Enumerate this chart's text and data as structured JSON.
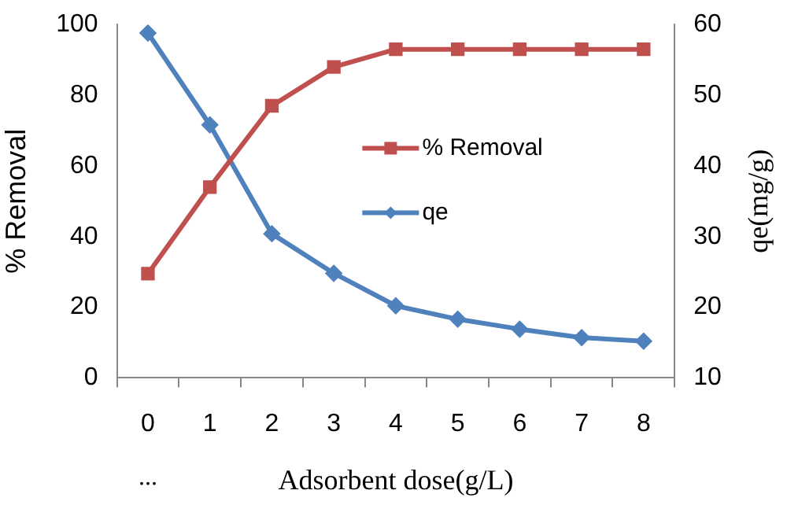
{
  "chart_data": {
    "type": "line",
    "xlabel": "Adsorbent dose(g/L)",
    "ylabel": "% Removal",
    "y2label": "qe(mg/g)",
    "categories": [
      "0",
      "1",
      "2",
      "3",
      "4",
      "5",
      "6",
      "7",
      "8"
    ],
    "series": [
      {
        "name": "% Removal",
        "color": "#c0504d",
        "marker": "square",
        "values": [
          29.5,
          54,
          77,
          88,
          93,
          93,
          93,
          93,
          93
        ]
      },
      {
        "name": "qe",
        "color": "#4f81bd",
        "marker": "diamond",
        "axis": "y2",
        "values": [
          58.8,
          45.8,
          30.4,
          24.8,
          20.2,
          18.3,
          16.9,
          15.7,
          15.2
        ]
      }
    ],
    "ylim": [
      0,
      100
    ],
    "yticks": [
      0,
      20,
      40,
      60,
      80,
      100
    ],
    "y2lim": [
      10,
      60
    ],
    "y2ticks": [
      10,
      20,
      30,
      40,
      50,
      60
    ],
    "annotations": [
      "..."
    ],
    "grid": false,
    "legend": "right",
    "line_style": "solid"
  }
}
